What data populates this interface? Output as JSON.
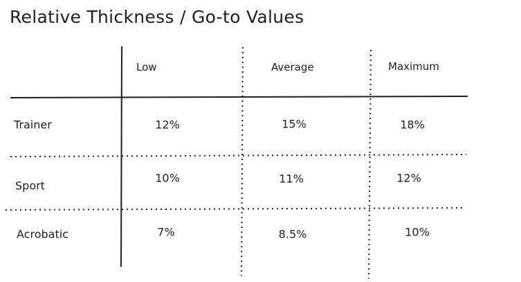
{
  "title": "Relative Thickness / Go-to Values",
  "table": {
    "columns": [
      "Low",
      "Average",
      "Maximum"
    ],
    "rows": [
      {
        "label": "Trainer",
        "values": [
          "12%",
          "15%",
          "18%"
        ]
      },
      {
        "label": "Sport",
        "values": [
          "10%",
          "11%",
          "12%"
        ]
      },
      {
        "label": "Acrobatic",
        "values": [
          "7%",
          "8.5%",
          "10%"
        ]
      }
    ]
  },
  "colors": {
    "stroke": "#1e1e1e",
    "background": "#ffffff"
  }
}
